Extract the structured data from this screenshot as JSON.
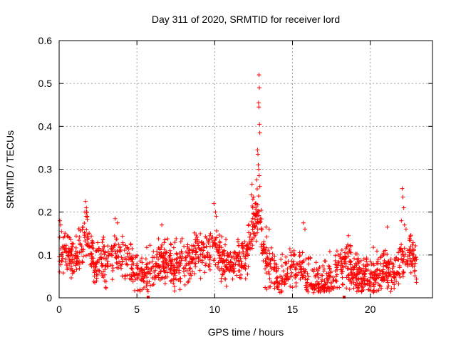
{
  "chart_data": {
    "type": "scatter",
    "title": "Day 311 of 2020, SRMTID for receiver lord",
    "xlabel": "GPS time / hours",
    "ylabel": "SRMTID / TECUs",
    "xlim": [
      0,
      24
    ],
    "ylim": [
      0,
      0.6
    ],
    "x_ticks": [
      0,
      5,
      10,
      15,
      20
    ],
    "y_ticks": [
      0,
      0.1,
      0.2,
      0.3,
      0.4,
      0.5,
      0.6
    ],
    "grid": true,
    "marker": "+",
    "color": "#ff0000",
    "x_range": [
      0,
      23
    ],
    "baseline": [
      [
        0.0,
        0.11
      ],
      [
        0.5,
        0.11
      ],
      [
        1.0,
        0.09
      ],
      [
        1.5,
        0.13
      ],
      [
        1.8,
        0.15
      ],
      [
        2.2,
        0.08
      ],
      [
        3.0,
        0.09
      ],
      [
        3.5,
        0.11
      ],
      [
        4.0,
        0.09
      ],
      [
        4.5,
        0.08
      ],
      [
        5.0,
        0.07
      ],
      [
        5.5,
        0.05
      ],
      [
        6.0,
        0.06
      ],
      [
        6.5,
        0.09
      ],
      [
        7.0,
        0.08
      ],
      [
        7.5,
        0.07
      ],
      [
        8.0,
        0.08
      ],
      [
        8.5,
        0.09
      ],
      [
        9.0,
        0.11
      ],
      [
        9.5,
        0.1
      ],
      [
        10.0,
        0.13
      ],
      [
        10.5,
        0.08
      ],
      [
        11.0,
        0.07
      ],
      [
        11.5,
        0.09
      ],
      [
        12.0,
        0.1
      ],
      [
        12.5,
        0.17
      ],
      [
        12.8,
        0.2
      ],
      [
        13.2,
        0.1
      ],
      [
        13.5,
        0.07
      ],
      [
        14.0,
        0.05
      ],
      [
        14.5,
        0.06
      ],
      [
        15.0,
        0.07
      ],
      [
        15.5,
        0.08
      ],
      [
        16.0,
        0.05
      ],
      [
        16.5,
        0.04
      ],
      [
        17.0,
        0.03
      ],
      [
        17.5,
        0.04
      ],
      [
        18.0,
        0.07
      ],
      [
        18.5,
        0.08
      ],
      [
        19.0,
        0.06
      ],
      [
        19.5,
        0.05
      ],
      [
        20.0,
        0.05
      ],
      [
        20.5,
        0.05
      ],
      [
        21.0,
        0.06
      ],
      [
        21.5,
        0.05
      ],
      [
        22.0,
        0.09
      ],
      [
        22.5,
        0.11
      ],
      [
        23.0,
        0.09
      ]
    ],
    "spread": 0.035,
    "peaks": [
      {
        "x": 12.85,
        "y": 0.52
      },
      {
        "x": 12.87,
        "y": 0.49
      },
      {
        "x": 12.82,
        "y": 0.455
      },
      {
        "x": 12.84,
        "y": 0.445
      },
      {
        "x": 12.88,
        "y": 0.405
      },
      {
        "x": 12.9,
        "y": 0.385
      },
      {
        "x": 12.75,
        "y": 0.345
      },
      {
        "x": 12.78,
        "y": 0.335
      },
      {
        "x": 12.8,
        "y": 0.31
      },
      {
        "x": 12.83,
        "y": 0.3
      },
      {
        "x": 12.86,
        "y": 0.285
      },
      {
        "x": 12.7,
        "y": 0.275
      },
      {
        "x": 12.4,
        "y": 0.265
      },
      {
        "x": 12.35,
        "y": 0.24
      },
      {
        "x": 12.5,
        "y": 0.235
      },
      {
        "x": 12.6,
        "y": 0.22
      },
      {
        "x": 12.45,
        "y": 0.21
      },
      {
        "x": 12.9,
        "y": 0.26
      },
      {
        "x": 22.05,
        "y": 0.255
      },
      {
        "x": 22.1,
        "y": 0.235
      },
      {
        "x": 22.15,
        "y": 0.21
      },
      {
        "x": 22.0,
        "y": 0.18
      },
      {
        "x": 22.2,
        "y": 0.17
      },
      {
        "x": 22.3,
        "y": 0.16
      },
      {
        "x": 1.7,
        "y": 0.225
      },
      {
        "x": 1.75,
        "y": 0.21
      },
      {
        "x": 1.8,
        "y": 0.19
      },
      {
        "x": 1.65,
        "y": 0.2
      },
      {
        "x": 9.95,
        "y": 0.22
      },
      {
        "x": 10.05,
        "y": 0.2
      },
      {
        "x": 10.1,
        "y": 0.19
      },
      {
        "x": 3.6,
        "y": 0.185
      },
      {
        "x": 3.75,
        "y": 0.175
      },
      {
        "x": 0.05,
        "y": 0.18
      },
      {
        "x": 0.1,
        "y": 0.17
      },
      {
        "x": 0.15,
        "y": 0.155
      },
      {
        "x": 15.7,
        "y": 0.175
      },
      {
        "x": 15.8,
        "y": 0.16
      },
      {
        "x": 6.6,
        "y": 0.17
      },
      {
        "x": 21.1,
        "y": 0.165
      },
      {
        "x": 18.6,
        "y": 0.145
      },
      {
        "x": 13.3,
        "y": 0.165
      },
      {
        "x": 13.5,
        "y": 0.16
      }
    ],
    "zero_markers": [
      5.72,
      18.32
    ]
  }
}
